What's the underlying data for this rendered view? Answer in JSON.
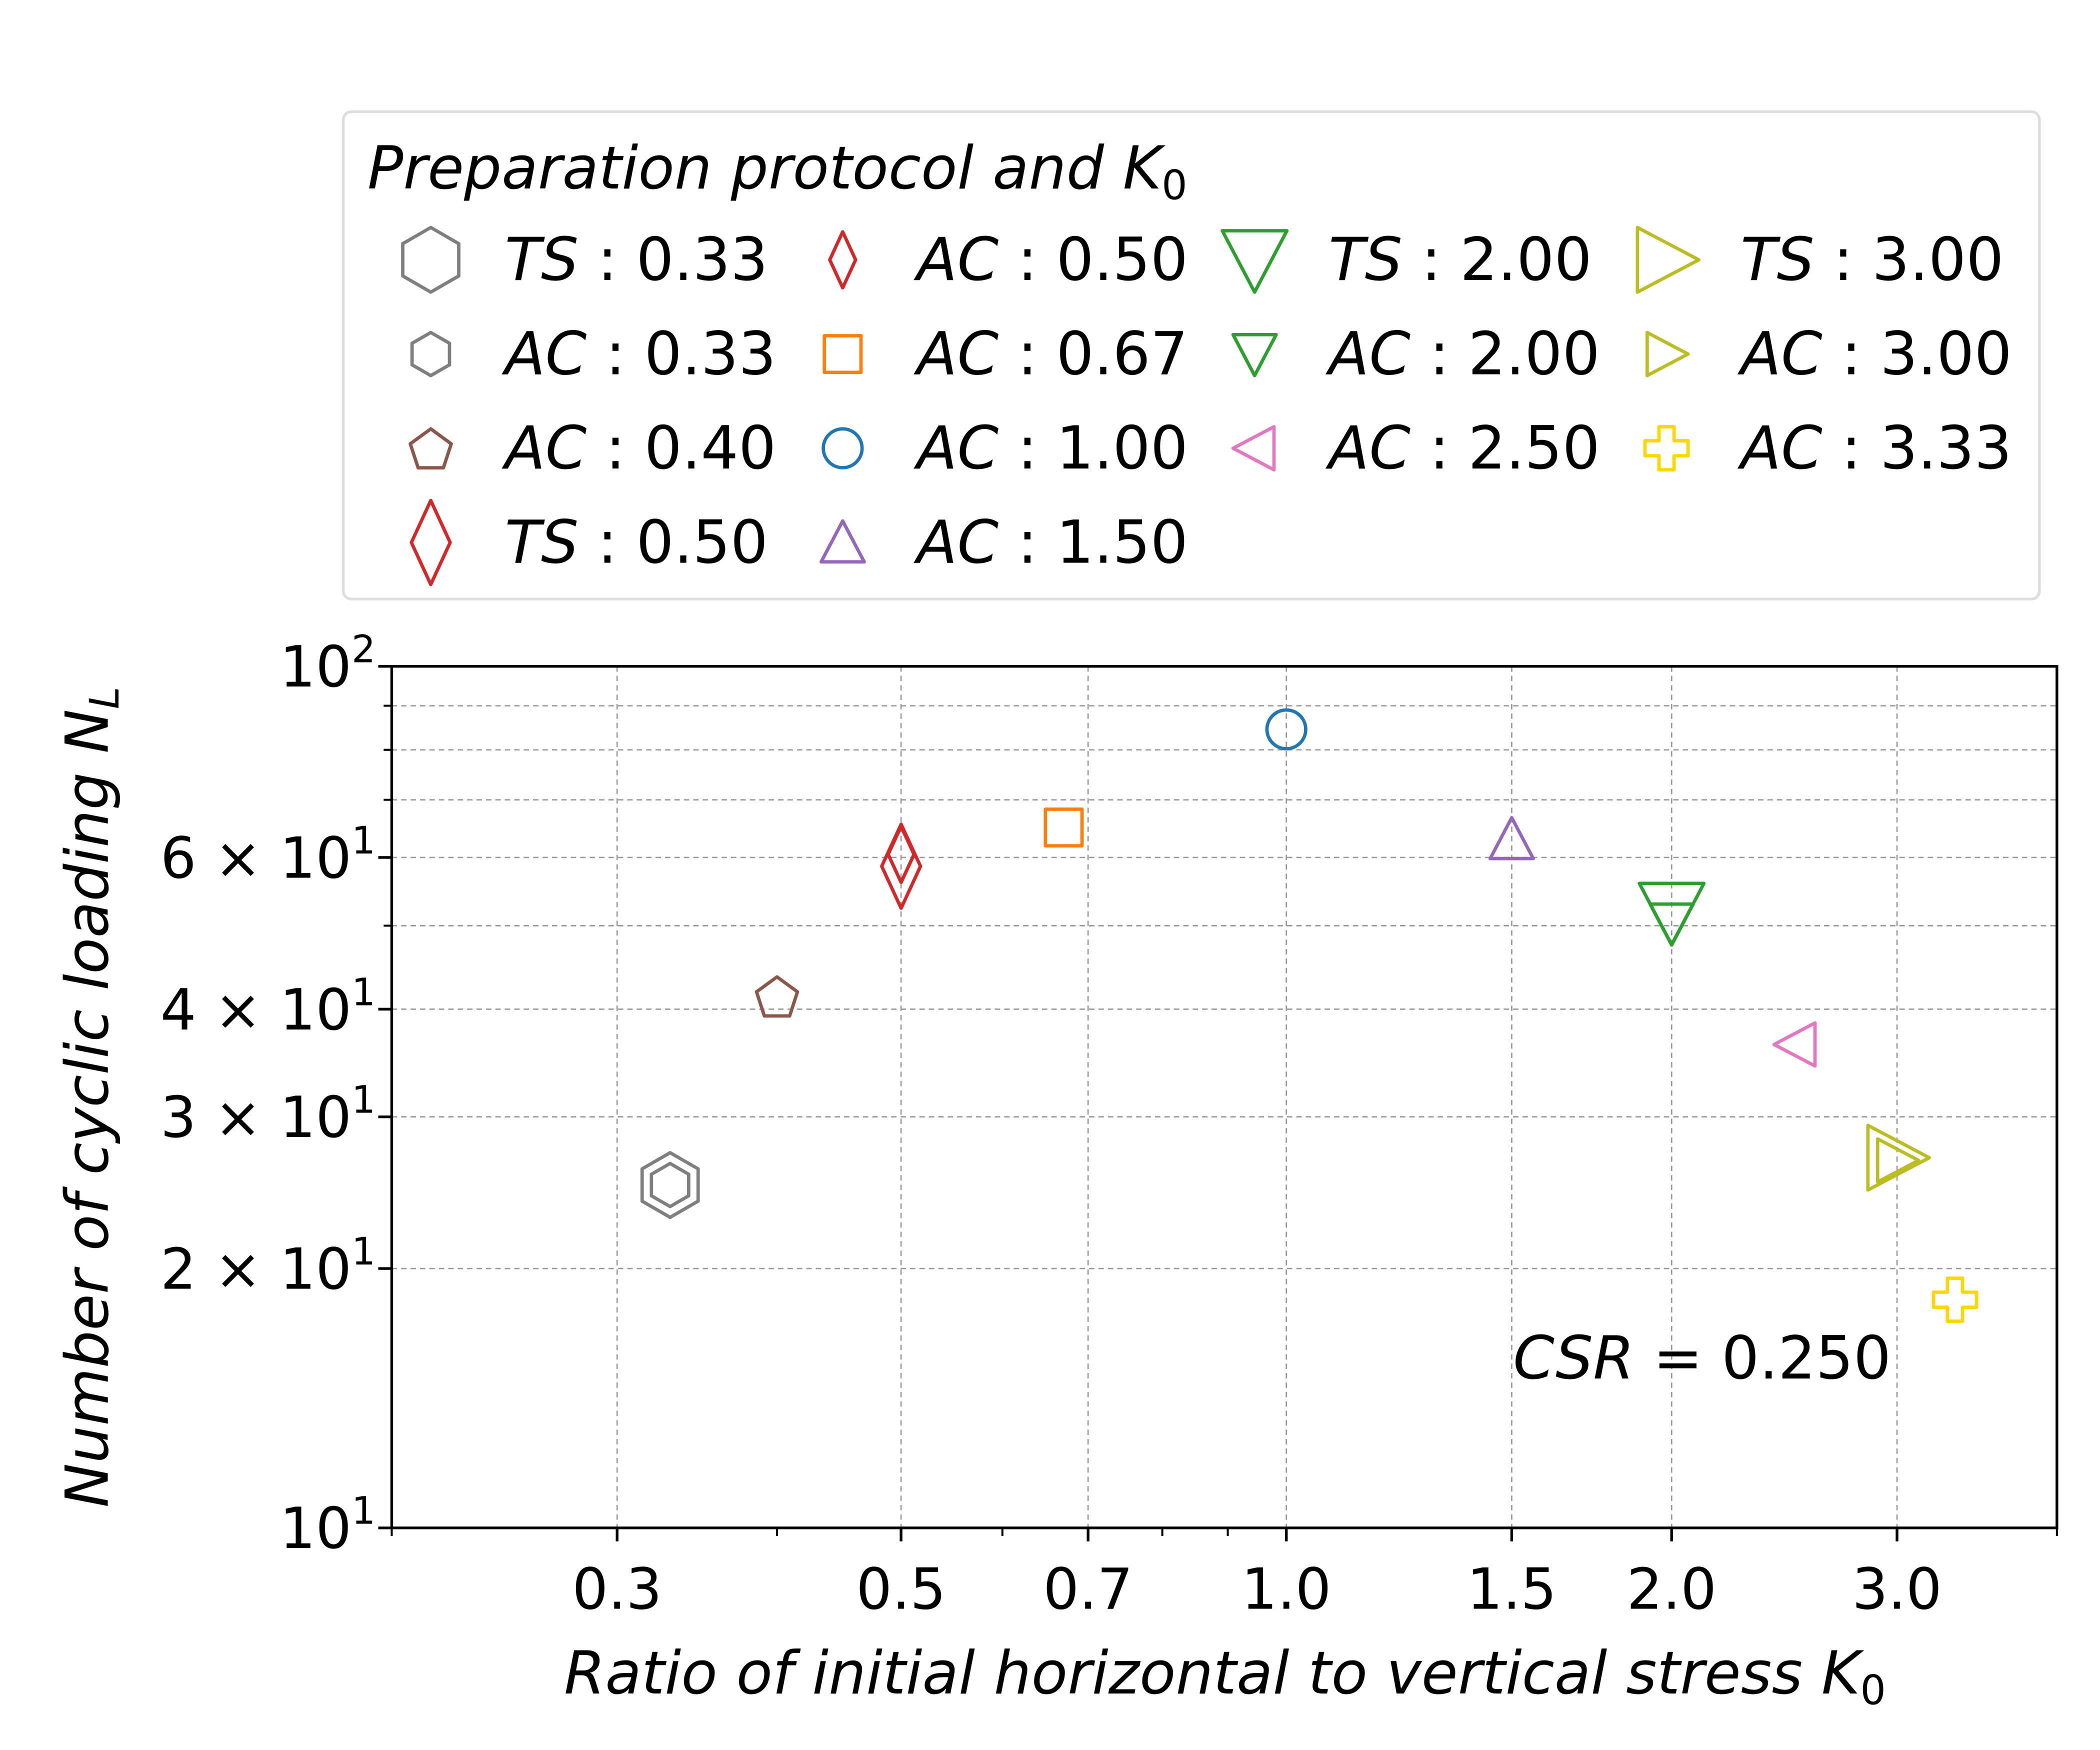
{
  "chart_data": {
    "type": "scatter",
    "title": "",
    "xlabel": "Ratio of initial horizontal to vertical stress K",
    "xlabel_sub": "0",
    "ylabel": "Number of cyclic loading N",
    "ylabel_sub": "L",
    "xscale": "log",
    "yscale": "log",
    "xlim": [
      0.2,
      4.0
    ],
    "ylim": [
      10,
      100
    ],
    "grid": true,
    "x_ticks": [
      {
        "value": 0.3,
        "label": "0.3"
      },
      {
        "value": 0.5,
        "label": "0.5"
      },
      {
        "value": 0.7,
        "label": "0.7"
      },
      {
        "value": 1.0,
        "label": "1.0"
      },
      {
        "value": 1.5,
        "label": "1.5"
      },
      {
        "value": 2.0,
        "label": "2.0"
      },
      {
        "value": 3.0,
        "label": "3.0"
      }
    ],
    "y_ticks": [
      {
        "value": 100,
        "mant": "",
        "base": "10",
        "exp": "2"
      },
      {
        "value": 60,
        "mant": "6 × ",
        "base": "10",
        "exp": "1"
      },
      {
        "value": 40,
        "mant": "4 × ",
        "base": "10",
        "exp": "1"
      },
      {
        "value": 30,
        "mant": "3 × ",
        "base": "10",
        "exp": "1"
      },
      {
        "value": 20,
        "mant": "2 × ",
        "base": "10",
        "exp": "1"
      },
      {
        "value": 10,
        "mant": "",
        "base": "10",
        "exp": "1"
      }
    ],
    "y_minor_grid": [
      20,
      30,
      40,
      50,
      60,
      70,
      80,
      90
    ],
    "annotation": {
      "lhs": "CSR",
      "rhs": " = 0.250"
    },
    "legend": {
      "title": "Preparation protocol and K",
      "title_sub": "0",
      "placement": "above plot"
    },
    "series": [
      {
        "protocol": "TS",
        "k0_label": " : 0.33",
        "marker": "hexagon",
        "size": "large",
        "color": "#7f7f7f",
        "x": 0.33,
        "y": 25.0
      },
      {
        "protocol": "AC",
        "k0_label": " : 0.33",
        "marker": "hexagon",
        "size": "small",
        "color": "#7f7f7f",
        "x": 0.33,
        "y": 25.0
      },
      {
        "protocol": "AC",
        "k0_label": " : 0.40",
        "marker": "pentagon",
        "size": "small",
        "color": "#8c564b",
        "x": 0.4,
        "y": 41.4
      },
      {
        "protocol": "TS",
        "k0_label": " : 0.50",
        "marker": "diamond",
        "size": "large",
        "color": "#d62728",
        "x": 0.5,
        "y": 58.6
      },
      {
        "protocol": "AC",
        "k0_label": " : 0.50",
        "marker": "diamond",
        "size": "small",
        "color": "#d62728",
        "x": 0.5,
        "y": 60.5
      },
      {
        "protocol": "AC",
        "k0_label": " : 0.67",
        "marker": "square",
        "size": "small",
        "color": "#ff7f0e",
        "x": 0.67,
        "y": 65.0
      },
      {
        "protocol": "AC",
        "k0_label": " : 1.00",
        "marker": "circle",
        "size": "small",
        "color": "#1f77b4",
        "x": 1.0,
        "y": 84.5
      },
      {
        "protocol": "AC",
        "k0_label": " : 1.50",
        "marker": "triangle-up",
        "size": "small",
        "color": "#9467bd",
        "x": 1.5,
        "y": 63.0
      },
      {
        "protocol": "TS",
        "k0_label": " : 2.00",
        "marker": "triangle-down",
        "size": "large",
        "color": "#2ca02c",
        "x": 2.0,
        "y": 51.8
      },
      {
        "protocol": "AC",
        "k0_label": " : 2.00",
        "marker": "triangle-down",
        "size": "small",
        "color": "#2ca02c",
        "x": 2.0,
        "y": 50.3
      },
      {
        "protocol": "AC",
        "k0_label": " : 2.50",
        "marker": "triangle-left",
        "size": "small",
        "color": "#e377c2",
        "x": 2.5,
        "y": 36.4
      },
      {
        "protocol": "TS",
        "k0_label": " : 3.00",
        "marker": "triangle-right",
        "size": "large",
        "color": "#bcbd22",
        "x": 3.0,
        "y": 26.9
      },
      {
        "protocol": "AC",
        "k0_label": " : 3.00",
        "marker": "triangle-right",
        "size": "small",
        "color": "#bcbd22",
        "x": 3.0,
        "y": 26.7
      },
      {
        "protocol": "AC",
        "k0_label": " : 3.33",
        "marker": "plus",
        "size": "small",
        "color": "#ffd700",
        "x": 3.33,
        "y": 18.4
      }
    ],
    "legend_order": [
      0,
      1,
      2,
      3,
      4,
      5,
      6,
      7,
      8,
      9,
      10,
      11,
      12,
      13
    ]
  }
}
